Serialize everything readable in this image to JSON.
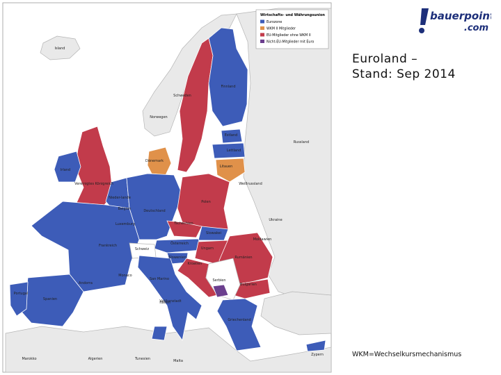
{
  "logo": {
    "name": "bauerpoint",
    "tld": ".com"
  },
  "title": {
    "line1": "Euroland –",
    "line2": "Stand: Sep 2014"
  },
  "legend": {
    "title": "Wirtschafts- und Währungsunion",
    "items": [
      {
        "label": "Eurozone",
        "color": "#3d5cb8"
      },
      {
        "label": "WKM II Mitglieder",
        "color": "#e0914a"
      },
      {
        "label": "EU-Mitglieder ohne WKM II",
        "color": "#c23b4b"
      },
      {
        "label": "Nicht-EU-Mitglieder mit Euro",
        "color": "#6b3f8e"
      }
    ]
  },
  "labels": [
    "Island",
    "Norwegen",
    "Schweden",
    "Finnland",
    "Estland",
    "Lettland",
    "Litauen",
    "Russland",
    "Weißrussland",
    "Ukraine",
    "Irland",
    "Vereinigtes Königreich",
    "Dänemark",
    "Nieder-lande",
    "Belgien",
    "Luxemburg",
    "Deutschland",
    "Polen",
    "Tschechien",
    "Slowakei",
    "Österreich",
    "Ungarn",
    "Rumänien",
    "Moldawien",
    "Frankreich",
    "Schweiz",
    "Slowenien",
    "Kroatien",
    "Italien",
    "Monaco",
    "San Marino",
    "Vatikanstadt",
    "Serbien",
    "Bulgarien",
    "Griechenland",
    "Portugal",
    "Spanien",
    "Andorra",
    "Marokko",
    "Algerien",
    "Tunesien",
    "Malta",
    "Zypern"
  ],
  "footnote": "WKM=Wechselkursmechanismus"
}
